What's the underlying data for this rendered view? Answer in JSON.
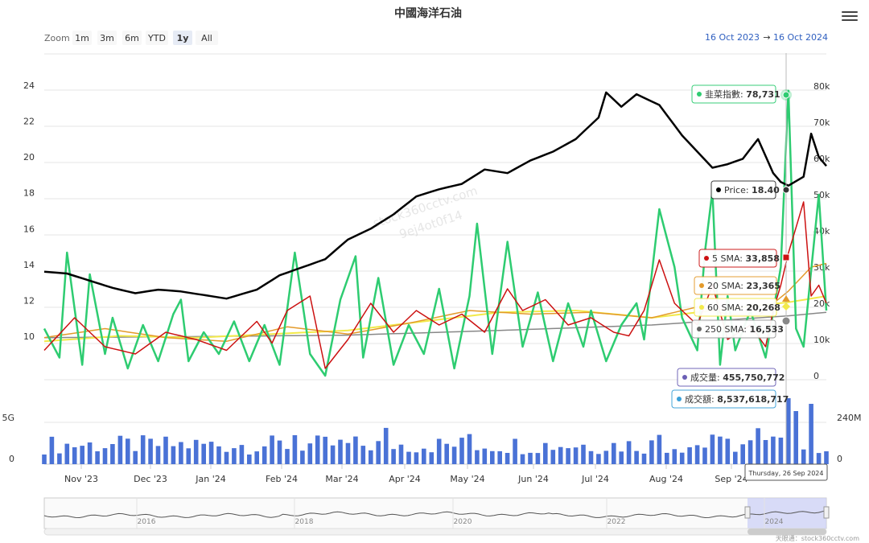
{
  "title": "中國海洋石油",
  "zoom": {
    "label": "Zoom",
    "buttons": [
      "1m",
      "3m",
      "6m",
      "YTD",
      "1y",
      "All"
    ],
    "selected": "1y"
  },
  "range": {
    "from": "16 Oct 2023",
    "arrow": "→",
    "to": "16 Oct 2024"
  },
  "watermark": [
    "stock360cctv.com",
    "9ej4ot0f14"
  ],
  "credits": "天眼通：stock360cctv.com",
  "colors": {
    "price": "#000000",
    "index": "#2ecc71",
    "sma5": "#cc1111",
    "sma20": "#e39a2a",
    "sma60": "#f2e94a",
    "sma250": "#888888",
    "volume": "#4a72d6",
    "navigator_fill": "#c9cdf5"
  },
  "tooltips": {
    "index": {
      "label": "韭菜指數",
      "value": "78,731"
    },
    "price": {
      "label": "Price",
      "value": "18.40"
    },
    "sma5": {
      "label": "5 SMA",
      "value": "33,858"
    },
    "sma20": {
      "label": "20 SMA",
      "value": "23,365"
    },
    "sma60": {
      "label": "60 SMA",
      "value": "20,268"
    },
    "sma250": {
      "label": "250 SMA",
      "value": "16,533"
    },
    "volume": {
      "label": "成交量",
      "value": "455,750,772"
    },
    "turnover": {
      "label": "成交額",
      "value": "8,537,618,717"
    },
    "date": "Thursday, 26 Sep 2024"
  },
  "chart_data": {
    "type": "line",
    "title": "中國海洋石油",
    "x_range": [
      "2023-10-16",
      "2024-10-16"
    ],
    "x_ticks": [
      "Nov '23",
      "Dec '23",
      "Jan '24",
      "Feb '24",
      "Mar '24",
      "Apr '24",
      "May '24",
      "Jun '24",
      "Jul '24",
      "Aug '24",
      "Sep '24"
    ],
    "y_left": {
      "ticks": [
        "10",
        "12",
        "14",
        "16",
        "18",
        "20",
        "22",
        "24"
      ],
      "range": [
        8,
        25
      ]
    },
    "y_right": {
      "ticks": [
        "0",
        "10k",
        "20k",
        "30k",
        "40k",
        "50k",
        "60k",
        "70k",
        "80k"
      ],
      "range": [
        0,
        80000
      ]
    },
    "volume_left_ticks": [
      "0",
      "5G"
    ],
    "volume_right_ticks": [
      "0",
      "240M"
    ],
    "navigator_ticks": [
      "2016",
      "2018",
      "2020",
      "2022",
      "2024"
    ],
    "grid": true,
    "price_anchors": [
      [
        0,
        13.6
      ],
      [
        3,
        13.5
      ],
      [
        6,
        13.1
      ],
      [
        9,
        12.7
      ],
      [
        12,
        12.4
      ],
      [
        15,
        12.6
      ],
      [
        18,
        12.5
      ],
      [
        21,
        12.3
      ],
      [
        24,
        12.1
      ],
      [
        28,
        12.6
      ],
      [
        31,
        13.4
      ],
      [
        35,
        14.0
      ],
      [
        37,
        14.3
      ],
      [
        40,
        15.4
      ],
      [
        43,
        16.0
      ],
      [
        46,
        16.8
      ],
      [
        49,
        17.8
      ],
      [
        52,
        18.2
      ],
      [
        55,
        18.5
      ],
      [
        58,
        19.3
      ],
      [
        61,
        19.1
      ],
      [
        64,
        19.8
      ],
      [
        67,
        20.3
      ],
      [
        70,
        21.0
      ],
      [
        73,
        22.2
      ],
      [
        74,
        23.6
      ],
      [
        76,
        22.8
      ],
      [
        78,
        23.5
      ],
      [
        81,
        22.9
      ],
      [
        84,
        21.2
      ],
      [
        86,
        20.3
      ],
      [
        88,
        19.4
      ],
      [
        90,
        19.6
      ],
      [
        92,
        19.9
      ],
      [
        94,
        21.0
      ],
      [
        96,
        19.1
      ],
      [
        97,
        18.6
      ],
      [
        98,
        18.4
      ],
      [
        100,
        18.9
      ],
      [
        101,
        21.3
      ],
      [
        102,
        20.0
      ],
      [
        103,
        19.5
      ]
    ],
    "index_anchors": [
      [
        0,
        13000
      ],
      [
        2,
        5000
      ],
      [
        3,
        34000
      ],
      [
        5,
        3000
      ],
      [
        6,
        28000
      ],
      [
        8,
        6000
      ],
      [
        9,
        16000
      ],
      [
        11,
        2000
      ],
      [
        13,
        14000
      ],
      [
        15,
        4000
      ],
      [
        17,
        17000
      ],
      [
        18,
        21000
      ],
      [
        19,
        4000
      ],
      [
        21,
        12000
      ],
      [
        23,
        6000
      ],
      [
        25,
        15000
      ],
      [
        27,
        4000
      ],
      [
        29,
        14000
      ],
      [
        31,
        3000
      ],
      [
        33,
        34000
      ],
      [
        35,
        6000
      ],
      [
        37,
        0
      ],
      [
        39,
        21000
      ],
      [
        41,
        33000
      ],
      [
        42,
        5000
      ],
      [
        44,
        27000
      ],
      [
        46,
        3000
      ],
      [
        48,
        14000
      ],
      [
        50,
        6000
      ],
      [
        52,
        24000
      ],
      [
        54,
        2000
      ],
      [
        56,
        22000
      ],
      [
        57,
        42000
      ],
      [
        59,
        6000
      ],
      [
        61,
        37000
      ],
      [
        63,
        8000
      ],
      [
        65,
        23000
      ],
      [
        67,
        4000
      ],
      [
        69,
        20000
      ],
      [
        71,
        8000
      ],
      [
        72,
        18000
      ],
      [
        74,
        4000
      ],
      [
        76,
        14000
      ],
      [
        78,
        20000
      ],
      [
        79,
        10000
      ],
      [
        81,
        46000
      ],
      [
        83,
        30000
      ],
      [
        84,
        16000
      ],
      [
        86,
        7000
      ],
      [
        87,
        34000
      ],
      [
        88,
        51000
      ],
      [
        89,
        3000
      ],
      [
        90,
        22000
      ],
      [
        91,
        7000
      ],
      [
        93,
        18000
      ],
      [
        95,
        5000
      ],
      [
        97,
        30000
      ],
      [
        98,
        78731
      ],
      [
        99,
        13000
      ],
      [
        100,
        8000
      ],
      [
        102,
        50000
      ],
      [
        103,
        18000
      ]
    ],
    "sma5_anchors": [
      [
        0,
        7000
      ],
      [
        4,
        16000
      ],
      [
        8,
        8000
      ],
      [
        12,
        6000
      ],
      [
        16,
        12000
      ],
      [
        20,
        10000
      ],
      [
        24,
        7000
      ],
      [
        28,
        15000
      ],
      [
        30,
        9000
      ],
      [
        32,
        18000
      ],
      [
        35,
        22000
      ],
      [
        37,
        2000
      ],
      [
        40,
        10000
      ],
      [
        43,
        20000
      ],
      [
        46,
        12000
      ],
      [
        49,
        18000
      ],
      [
        52,
        14000
      ],
      [
        55,
        17000
      ],
      [
        58,
        12000
      ],
      [
        61,
        24000
      ],
      [
        63,
        18000
      ],
      [
        66,
        21000
      ],
      [
        69,
        14000
      ],
      [
        72,
        16000
      ],
      [
        75,
        12000
      ],
      [
        77,
        11000
      ],
      [
        79,
        18000
      ],
      [
        81,
        32000
      ],
      [
        83,
        20000
      ],
      [
        86,
        14000
      ],
      [
        88,
        25000
      ],
      [
        90,
        10000
      ],
      [
        93,
        14000
      ],
      [
        95,
        8000
      ],
      [
        96,
        18000
      ],
      [
        97,
        25000
      ],
      [
        98,
        33858
      ],
      [
        100,
        48000
      ],
      [
        101,
        22000
      ],
      [
        102,
        25000
      ],
      [
        103,
        20000
      ]
    ],
    "sma20_anchors": [
      [
        0,
        10500
      ],
      [
        8,
        13000
      ],
      [
        16,
        10500
      ],
      [
        24,
        9500
      ],
      [
        32,
        13500
      ],
      [
        40,
        11500
      ],
      [
        48,
        14500
      ],
      [
        56,
        18000
      ],
      [
        64,
        17000
      ],
      [
        72,
        17500
      ],
      [
        80,
        16000
      ],
      [
        86,
        19000
      ],
      [
        90,
        17000
      ],
      [
        94,
        16500
      ],
      [
        98,
        23365
      ],
      [
        101,
        30000
      ],
      [
        103,
        31000
      ]
    ],
    "sma60_anchors": [
      [
        0,
        9500
      ],
      [
        10,
        11000
      ],
      [
        20,
        10500
      ],
      [
        30,
        11500
      ],
      [
        40,
        12500
      ],
      [
        50,
        15000
      ],
      [
        60,
        17500
      ],
      [
        70,
        18000
      ],
      [
        80,
        16000
      ],
      [
        90,
        18500
      ],
      [
        98,
        20268
      ],
      [
        103,
        22000
      ]
    ],
    "sma250_anchors": [
      [
        0,
        10500
      ],
      [
        20,
        10800
      ],
      [
        40,
        11200
      ],
      [
        60,
        12500
      ],
      [
        80,
        14000
      ],
      [
        98,
        16533
      ],
      [
        103,
        17500
      ]
    ],
    "volume_bars": 104
  }
}
